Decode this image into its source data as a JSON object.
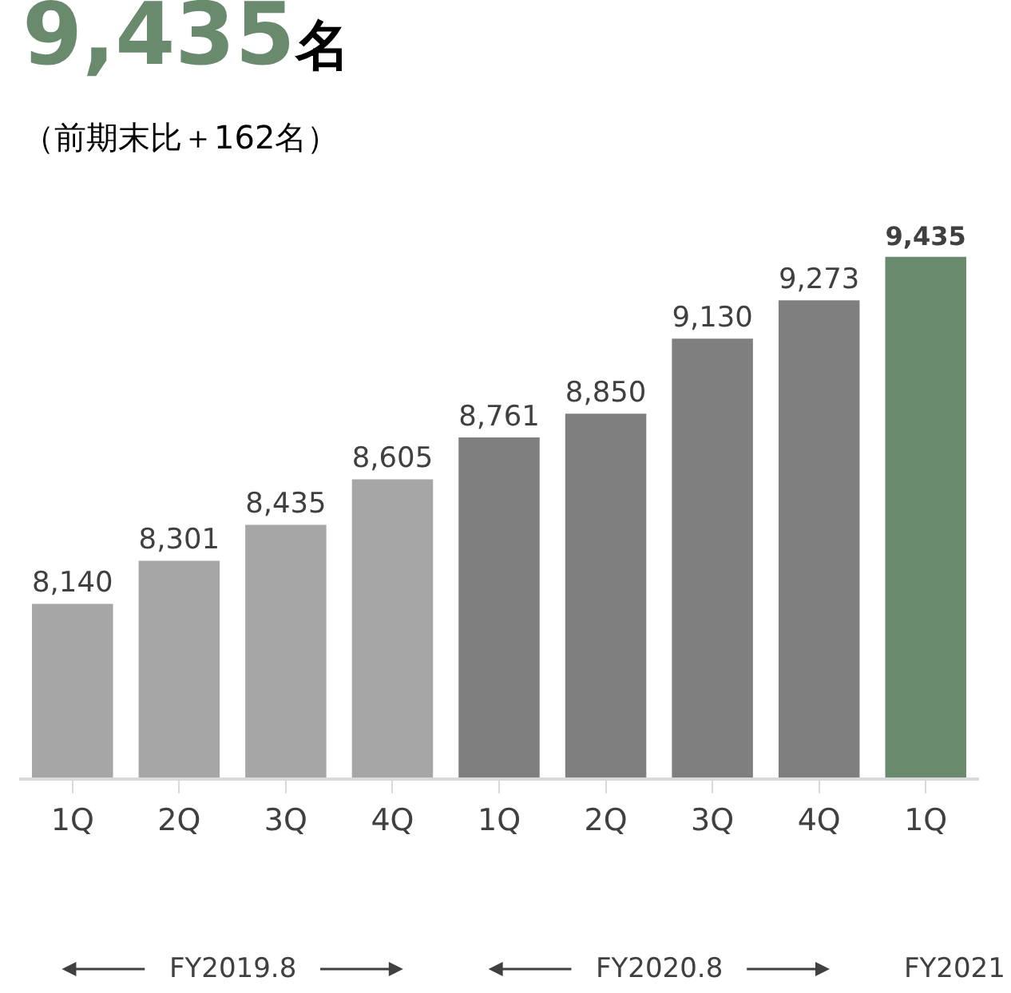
{
  "chart_data": {
    "type": "bar",
    "title": "9,435名",
    "subtitle": "（前期末比＋162名）",
    "categories": [
      "1Q",
      "2Q",
      "3Q",
      "4Q",
      "1Q",
      "2Q",
      "3Q",
      "4Q",
      "1Q"
    ],
    "values": [
      8140,
      8301,
      8435,
      8605,
      8761,
      8850,
      9130,
      9273,
      9435
    ],
    "colors": [
      "#a6a6a6",
      "#a6a6a6",
      "#a6a6a6",
      "#a6a6a6",
      "#7f7f7f",
      "#7f7f7f",
      "#7f7f7f",
      "#7f7f7f",
      "#6a8a6e"
    ],
    "value_labels": [
      "8,140",
      "8,301",
      "8,435",
      "8,605",
      "8,761",
      "8,850",
      "9,130",
      "9,273",
      "9,435"
    ],
    "legend": false,
    "annotations": [
      "FY2019.8",
      "FY2020.8",
      "FY2021"
    ]
  }
}
